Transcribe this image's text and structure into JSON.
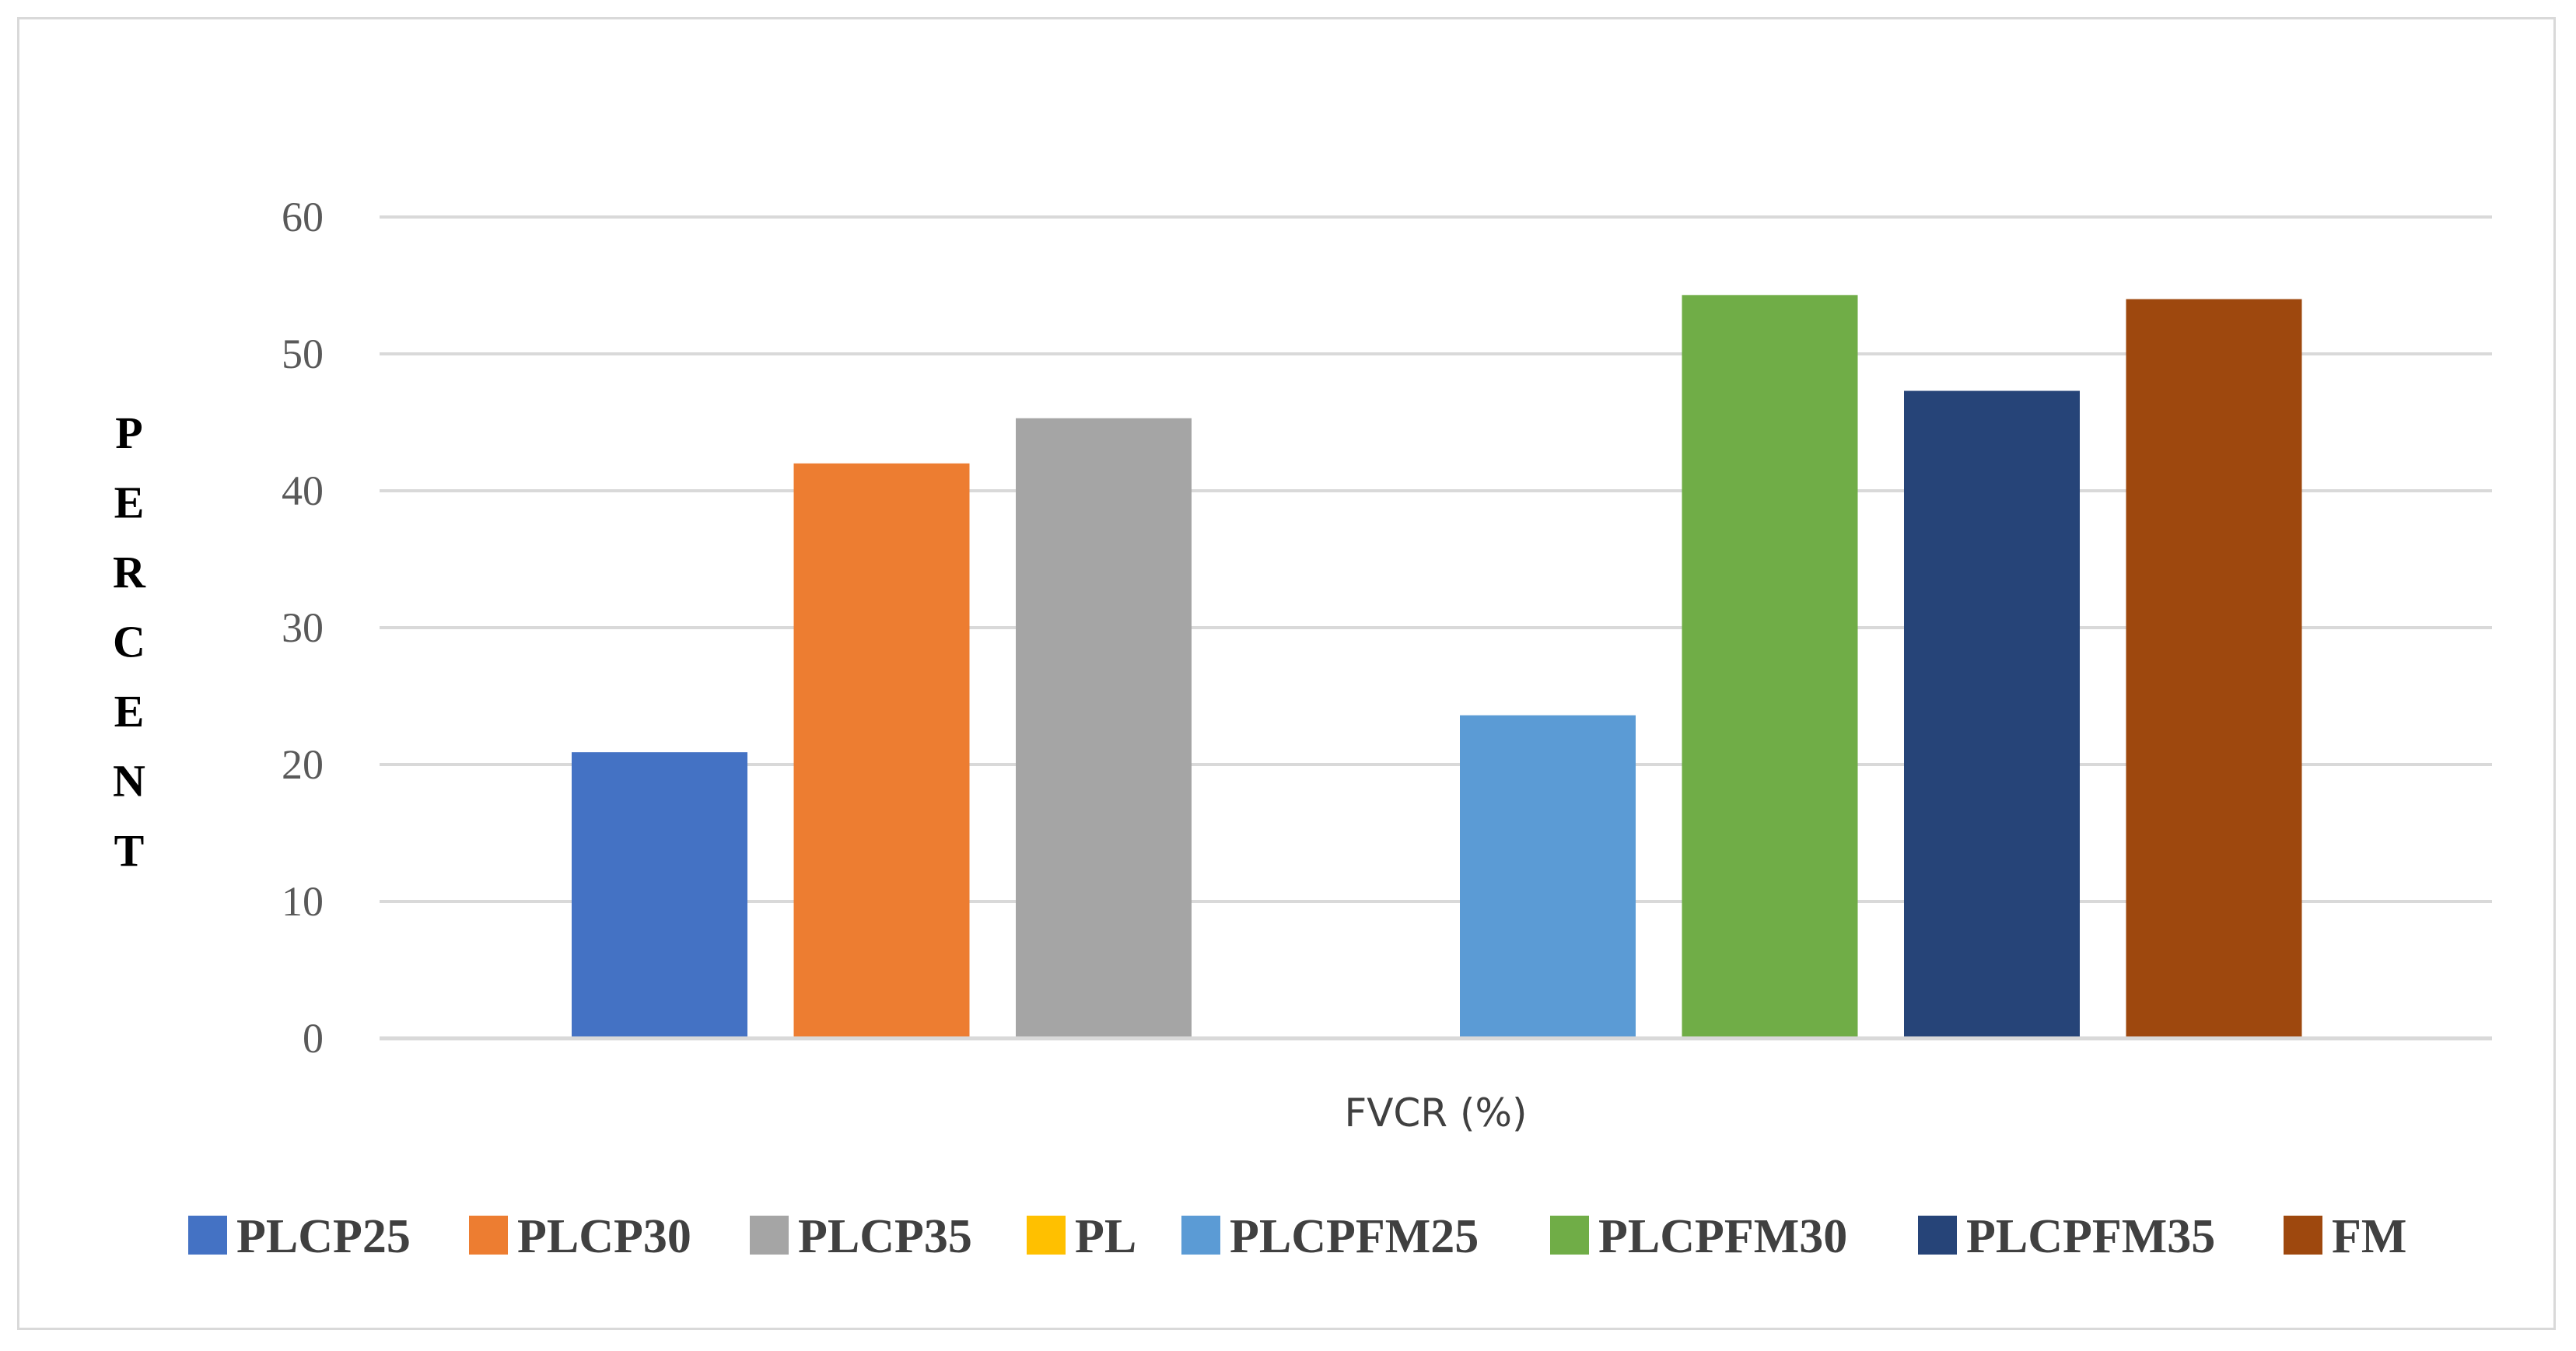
{
  "chart_data": {
    "type": "bar",
    "title": "",
    "xlabel": "FVCR (%)",
    "ylabel": "PERCENT",
    "ylim": [
      0,
      60
    ],
    "yticks": [
      "0",
      "10",
      "20",
      "30",
      "40",
      "50",
      "60"
    ],
    "grid": true,
    "legend_position": "bottom",
    "series": [
      {
        "name": "PLCP25",
        "value": 20.9,
        "color": "#4472c4"
      },
      {
        "name": "PLCP30",
        "value": 42.0,
        "color": "#ed7d31"
      },
      {
        "name": "PLCP35",
        "value": 45.3,
        "color": "#a5a5a5"
      },
      {
        "name": "PL",
        "value": 0,
        "color": "#ffc000"
      },
      {
        "name": "PLCPFM25",
        "value": 23.6,
        "color": "#5b9bd5"
      },
      {
        "name": "PLCPFM30",
        "value": 54.3,
        "color": "#70ad47"
      },
      {
        "name": "PLCPFM35",
        "value": 47.3,
        "color": "#264478"
      },
      {
        "name": "FM",
        "value": 54.0,
        "color": "#9e480e"
      }
    ]
  }
}
